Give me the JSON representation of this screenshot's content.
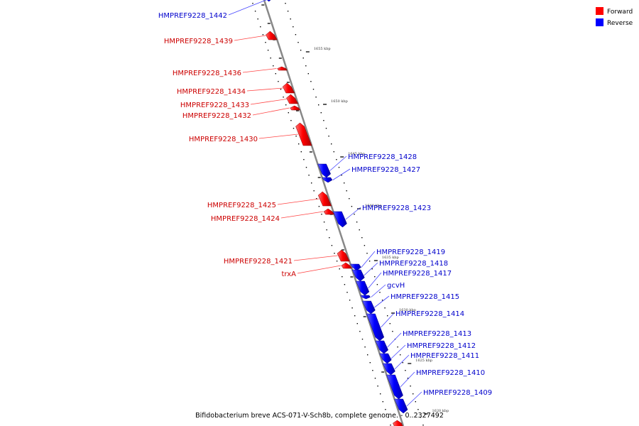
{
  "colors": {
    "forward": "#ff0000",
    "reverse": "#0000ff",
    "forward_label": "#cc0000",
    "reverse_label": "#0000cc",
    "backbone": "#888888"
  },
  "legend": {
    "forward": "Forward",
    "reverse": "Reverse"
  },
  "caption": "Bifidobacterium breve ACS-071-V-Sch8b, complete genome. - 0..2327492",
  "tick_labels": [
    "1655 kbp",
    "1650 kbp",
    "1645 kbp",
    "1640 kbp",
    "1635 kbp",
    "1630 kbp",
    "1625 kbp",
    "1620 kbp"
  ],
  "genes": [
    {
      "label": "HMPREF9228_1442",
      "strand": "reverse"
    },
    {
      "label": "HMPREF9228_1439",
      "strand": "forward"
    },
    {
      "label": "HMPREF9228_1436",
      "strand": "forward"
    },
    {
      "label": "HMPREF9228_1434",
      "strand": "forward"
    },
    {
      "label": "HMPREF9228_1433",
      "strand": "forward"
    },
    {
      "label": "HMPREF9228_1432",
      "strand": "forward"
    },
    {
      "label": "HMPREF9228_1430",
      "strand": "forward"
    },
    {
      "label": "HMPREF9228_1428",
      "strand": "reverse"
    },
    {
      "label": "HMPREF9228_1427",
      "strand": "reverse"
    },
    {
      "label": "HMPREF9228_1425",
      "strand": "forward"
    },
    {
      "label": "HMPREF9228_1424",
      "strand": "forward"
    },
    {
      "label": "HMPREF9228_1423",
      "strand": "reverse"
    },
    {
      "label": "HMPREF9228_1421",
      "strand": "forward"
    },
    {
      "label": "trxA",
      "strand": "forward"
    },
    {
      "label": "HMPREF9228_1419",
      "strand": "reverse"
    },
    {
      "label": "HMPREF9228_1418",
      "strand": "reverse"
    },
    {
      "label": "HMPREF9228_1417",
      "strand": "reverse"
    },
    {
      "label": "gcvH",
      "strand": "reverse"
    },
    {
      "label": "HMPREF9228_1415",
      "strand": "reverse"
    },
    {
      "label": "HMPREF9228_1414",
      "strand": "reverse"
    },
    {
      "label": "HMPREF9228_1413",
      "strand": "reverse"
    },
    {
      "label": "HMPREF9228_1412",
      "strand": "reverse"
    },
    {
      "label": "HMPREF9228_1411",
      "strand": "reverse"
    },
    {
      "label": "HMPREF9228_1410",
      "strand": "reverse"
    },
    {
      "label": "HMPREF9228_1409",
      "strand": "reverse"
    }
  ]
}
